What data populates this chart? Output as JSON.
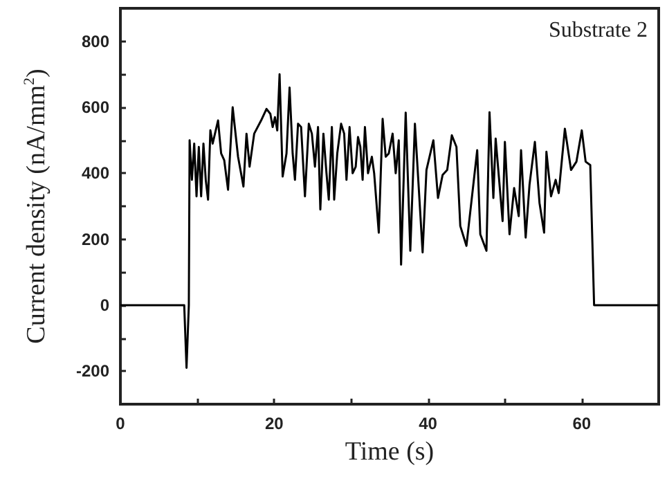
{
  "chart_data": {
    "type": "line",
    "xlabel": "Time (s)",
    "ylabel": "Current density (nA/mm$^{2}$)",
    "annotations": [
      "Substrate 2"
    ],
    "x": [
      0,
      8,
      8.3,
      8.6,
      8.9,
      9.0,
      9.3,
      9.6,
      9.9,
      10.2,
      10.5,
      10.8,
      11.1,
      11.4,
      11.7,
      12.0,
      12.3,
      12.7,
      13.1,
      13.5,
      14.0,
      14.6,
      15.3,
      16.0,
      16.4,
      16.8,
      17.4,
      18.3,
      19.0,
      19.5,
      19.8,
      20.1,
      20.4,
      20.7,
      21.1,
      21.6,
      22.0,
      22.4,
      22.7,
      23.1,
      23.5,
      24.0,
      24.5,
      24.9,
      25.3,
      25.7,
      26.0,
      26.4,
      26.8,
      27.1,
      27.5,
      27.8,
      28.2,
      28.7,
      29.1,
      29.4,
      29.8,
      30.2,
      30.6,
      30.9,
      31.2,
      31.5,
      31.8,
      32.2,
      32.7,
      33.0,
      33.6,
      34.1,
      34.5,
      34.9,
      35.4,
      35.8,
      36.2,
      36.5,
      37.1,
      37.7,
      38.3,
      39.3,
      39.8,
      40.7,
      41.3,
      41.9,
      42.5,
      43.1,
      43.7,
      44.2,
      45.0,
      46.4,
      46.8,
      47.6,
      48.0,
      48.5,
      48.8,
      49.7,
      50.0,
      50.6,
      51.2,
      51.8,
      52.1,
      52.7,
      53.2,
      53.9,
      54.5,
      55.1,
      55.4,
      56.0,
      56.6,
      57.0,
      57.8,
      58.6,
      59.3,
      60.0,
      60.5,
      61.1,
      61.6,
      63.5,
      70
    ],
    "series": [
      {
        "color": "#000000",
        "values": [
          0,
          0,
          0,
          -190,
          0,
          500,
          380,
          490,
          330,
          480,
          330,
          490,
          380,
          320,
          530,
          490,
          520,
          560,
          460,
          440,
          350,
          600,
          450,
          360,
          520,
          420,
          520,
          560,
          595,
          580,
          540,
          570,
          530,
          700,
          390,
          460,
          660,
          460,
          380,
          550,
          540,
          330,
          550,
          520,
          420,
          540,
          290,
          520,
          400,
          320,
          540,
          320,
          460,
          550,
          520,
          380,
          540,
          400,
          420,
          510,
          480,
          380,
          540,
          400,
          450,
          400,
          220,
          565,
          450,
          460,
          520,
          400,
          500,
          123,
          584,
          165,
          550,
          160,
          410,
          500,
          325,
          395,
          410,
          515,
          480,
          240,
          180,
          470,
          215,
          165,
          585,
          325,
          505,
          255,
          495,
          215,
          355,
          270,
          470,
          205,
          365,
          495,
          310,
          220,
          465,
          330,
          380,
          340,
          535,
          410,
          435,
          530,
          435,
          425,
          0,
          0,
          0
        ]
      }
    ],
    "xlim": [
      0,
      70
    ],
    "xticks": [
      0,
      {
        "value": 10,
        "label": null
      },
      20,
      {
        "value": 30,
        "label": null
      },
      40,
      {
        "value": 50,
        "label": null
      },
      60,
      {
        "value": 70,
        "label": null
      }
    ],
    "ylim": [
      -300,
      900
    ],
    "yticks": [
      {
        "value": -300,
        "label": null
      },
      -200,
      {
        "value": -100,
        "label": null
      },
      0,
      {
        "value": 100,
        "label": null
      },
      200,
      {
        "value": 300,
        "label": null
      },
      400,
      {
        "value": 500,
        "label": null
      },
      600,
      {
        "value": 700,
        "label": null
      },
      800,
      {
        "value": 900,
        "label": null
      }
    ],
    "marker": "none",
    "line_style": "solid"
  }
}
